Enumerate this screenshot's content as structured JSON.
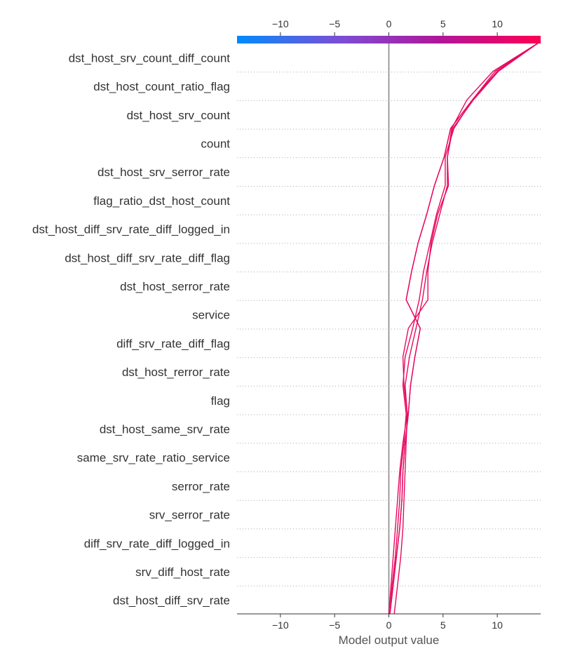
{
  "chart_data": {
    "type": "line",
    "xlabel": "Model output value",
    "xlim": [
      -14,
      14
    ],
    "ticks": [
      -10,
      -5,
      0,
      5,
      10
    ],
    "base_value": 0,
    "features": [
      "dst_host_srv_count_diff_count",
      "dst_host_count_ratio_flag",
      "dst_host_srv_count",
      "count",
      "dst_host_srv_serror_rate",
      "flag_ratio_dst_host_count",
      "dst_host_diff_srv_rate_diff_logged_in",
      "dst_host_diff_srv_rate_diff_flag",
      "dst_host_serror_rate",
      "service",
      "diff_srv_rate_diff_flag",
      "dst_host_rerror_rate",
      "flag",
      "dst_host_same_srv_rate",
      "same_srv_rate_ratio_service",
      "serror_rate",
      "srv_serror_rate",
      "diff_srv_rate_diff_logged_in",
      "srv_diff_host_rate",
      "dst_host_diff_srv_rate"
    ],
    "colorbar": {
      "colors": [
        "#008bfb",
        "#7a4fd6",
        "#b0169a",
        "#ff0051"
      ],
      "range": [
        -14,
        14
      ]
    },
    "line_color": "#e8095f",
    "series": [
      {
        "values": [
          0.1,
          0.4,
          0.7,
          1.0,
          1.2,
          1.3,
          1.5,
          1.8,
          2.0,
          2.4,
          2.9,
          1.6,
          2.1,
          2.7,
          3.5,
          4.2,
          5.1,
          5.7,
          7.7,
          10.0,
          13.8
        ]
      },
      {
        "values": [
          0.1,
          0.4,
          0.7,
          1.0,
          1.2,
          1.3,
          1.5,
          1.8,
          2.0,
          2.4,
          2.9,
          1.6,
          2.1,
          2.7,
          3.5,
          4.2,
          5.1,
          5.7,
          7.7,
          10.0,
          13.8
        ]
      },
      {
        "values": [
          0.5,
          0.8,
          1.1,
          1.3,
          1.4,
          1.5,
          1.6,
          1.7,
          1.4,
          1.3,
          1.8,
          3.6,
          3.6,
          3.9,
          4.5,
          5.5,
          5.4,
          5.9,
          7.8,
          10.1,
          13.8
        ]
      },
      {
        "values": [
          0.1,
          0.3,
          0.6,
          0.8,
          1.0,
          1.1,
          1.4,
          1.6,
          1.3,
          1.5,
          2.2,
          2.8,
          3.2,
          3.8,
          4.4,
          5.2,
          5.2,
          6.0,
          7.7,
          9.8,
          13.8
        ]
      },
      {
        "values": [
          0.0,
          0.2,
          0.4,
          0.6,
          0.8,
          1.0,
          1.3,
          1.7,
          1.5,
          1.9,
          2.5,
          3.1,
          3.5,
          4.0,
          4.7,
          5.4,
          5.4,
          5.8,
          7.2,
          9.6,
          13.8
        ]
      }
    ]
  }
}
